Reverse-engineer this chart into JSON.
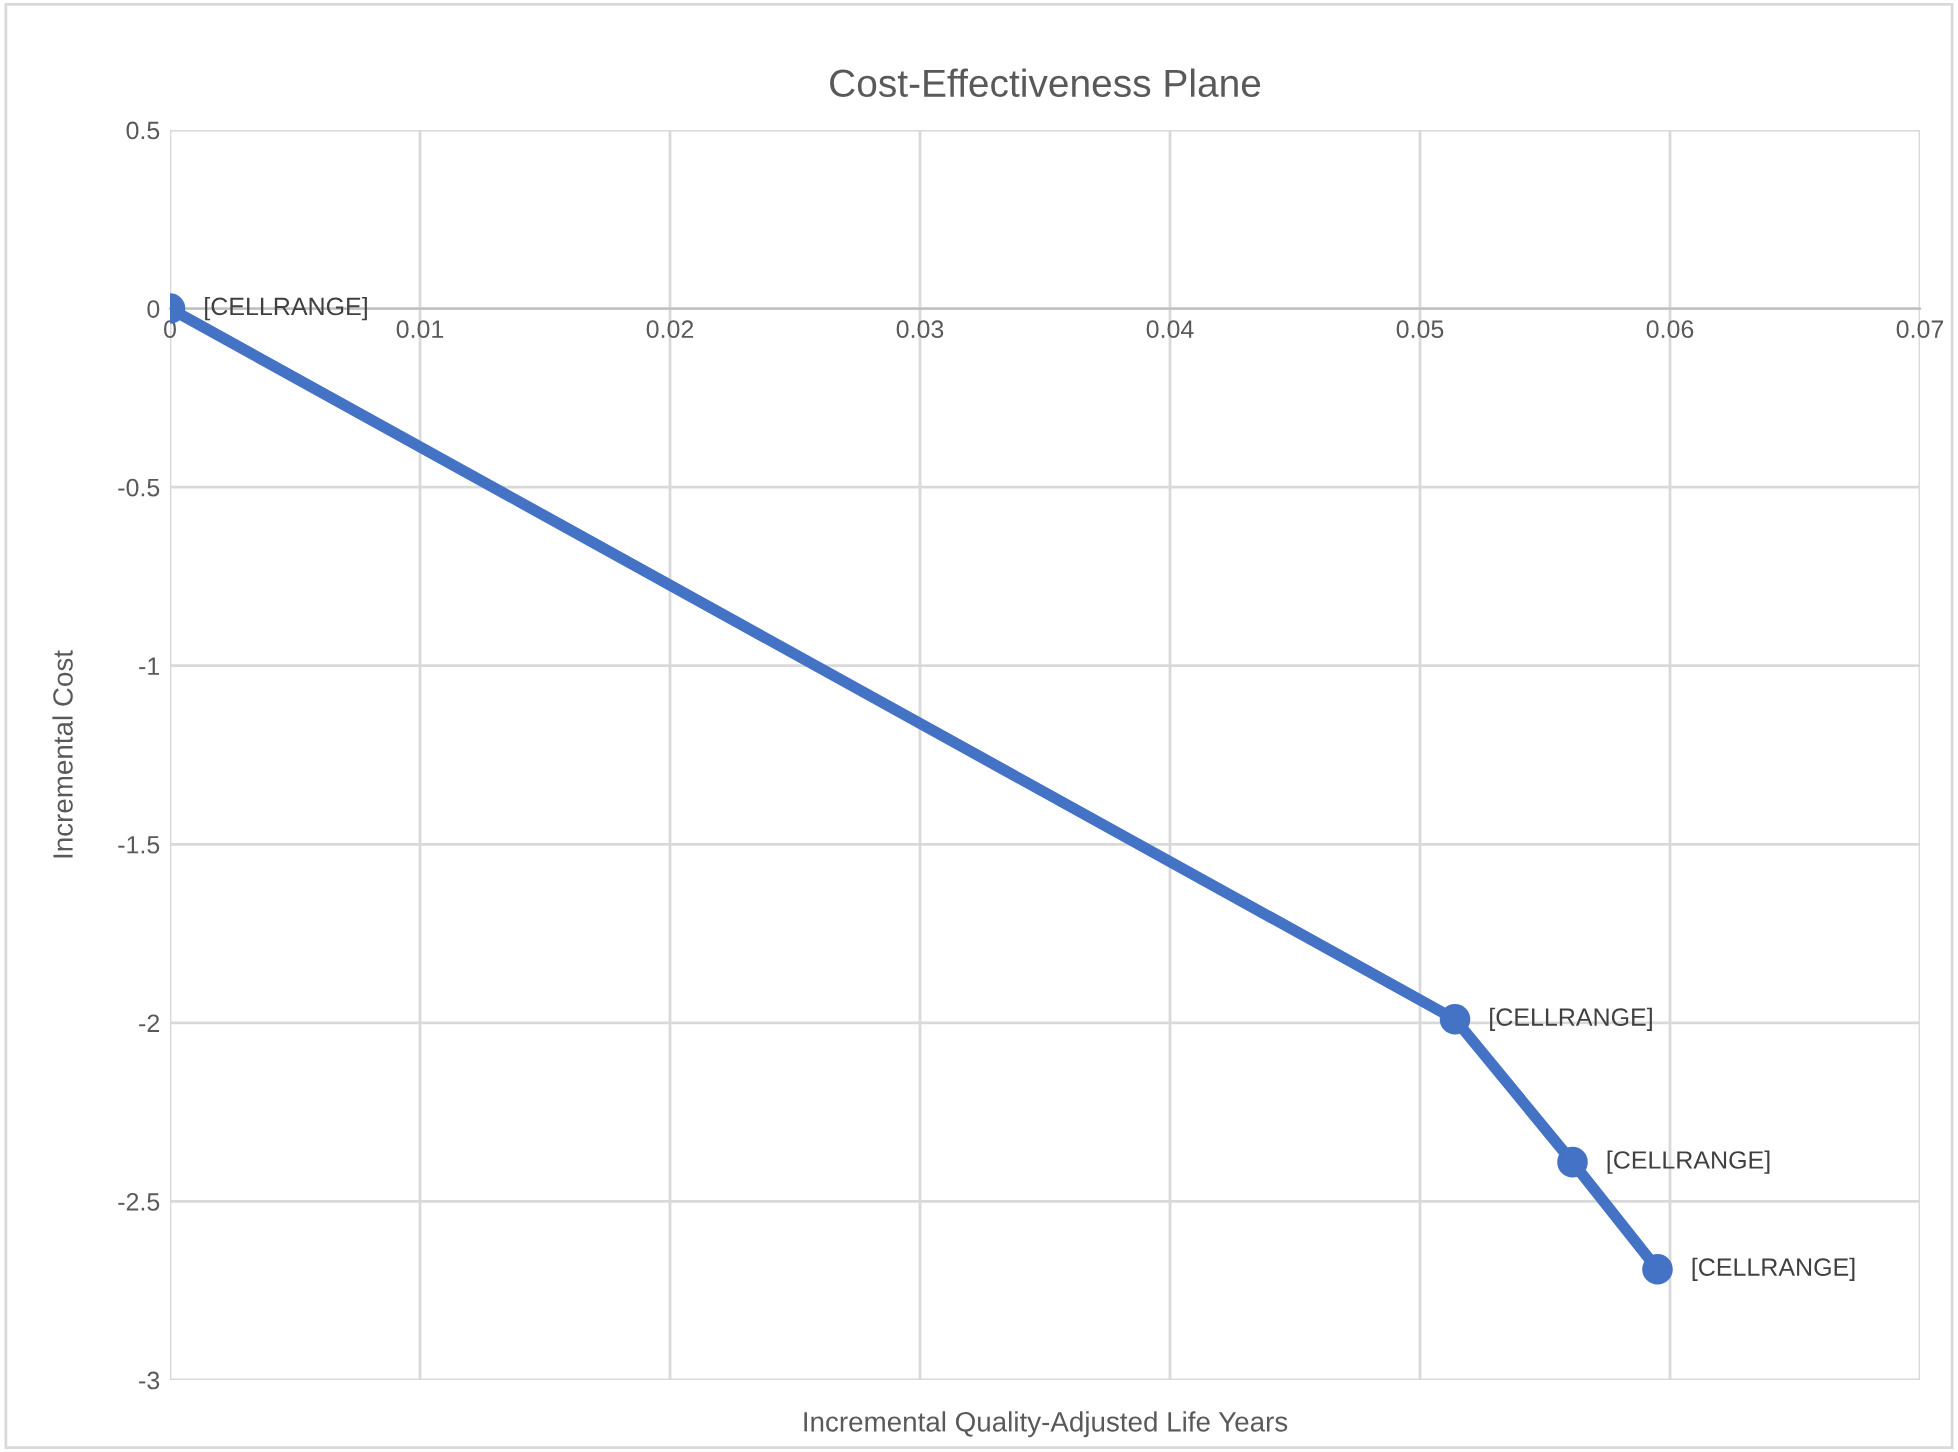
{
  "chart_data": {
    "type": "line",
    "title": "Cost-Effectiveness Plane",
    "xlabel": "Incremental Quality-Adjusted Life Years",
    "ylabel": "Incremental Cost",
    "x": [
      0,
      0.0514,
      0.0561,
      0.0595
    ],
    "series": [
      {
        "color": "#4472c4",
        "values": [
          0,
          -1.99,
          -2.39,
          -2.69
        ]
      }
    ],
    "xlim": [
      0,
      0.07
    ],
    "xticks": [
      0,
      0.01,
      0.02,
      0.03,
      0.04,
      0.05,
      0.06,
      0.07
    ],
    "ylim": [
      -3,
      0.5
    ],
    "yticks": [
      -3,
      -2.5,
      -2,
      -1.5,
      -1,
      -0.5,
      0,
      0.5
    ],
    "grid": true,
    "marker": "circle",
    "line_style": "solid",
    "annotations": [
      {
        "text": "[CELLRANGE]",
        "x": 0,
        "y": 0
      },
      {
        "text": "[CELLRANGE]",
        "x": 0.0514,
        "y": -1.99
      },
      {
        "text": "[CELLRANGE]",
        "x": 0.0561,
        "y": -2.39
      },
      {
        "text": "[CELLRANGE]",
        "x": 0.0595,
        "y": -2.69
      }
    ]
  }
}
